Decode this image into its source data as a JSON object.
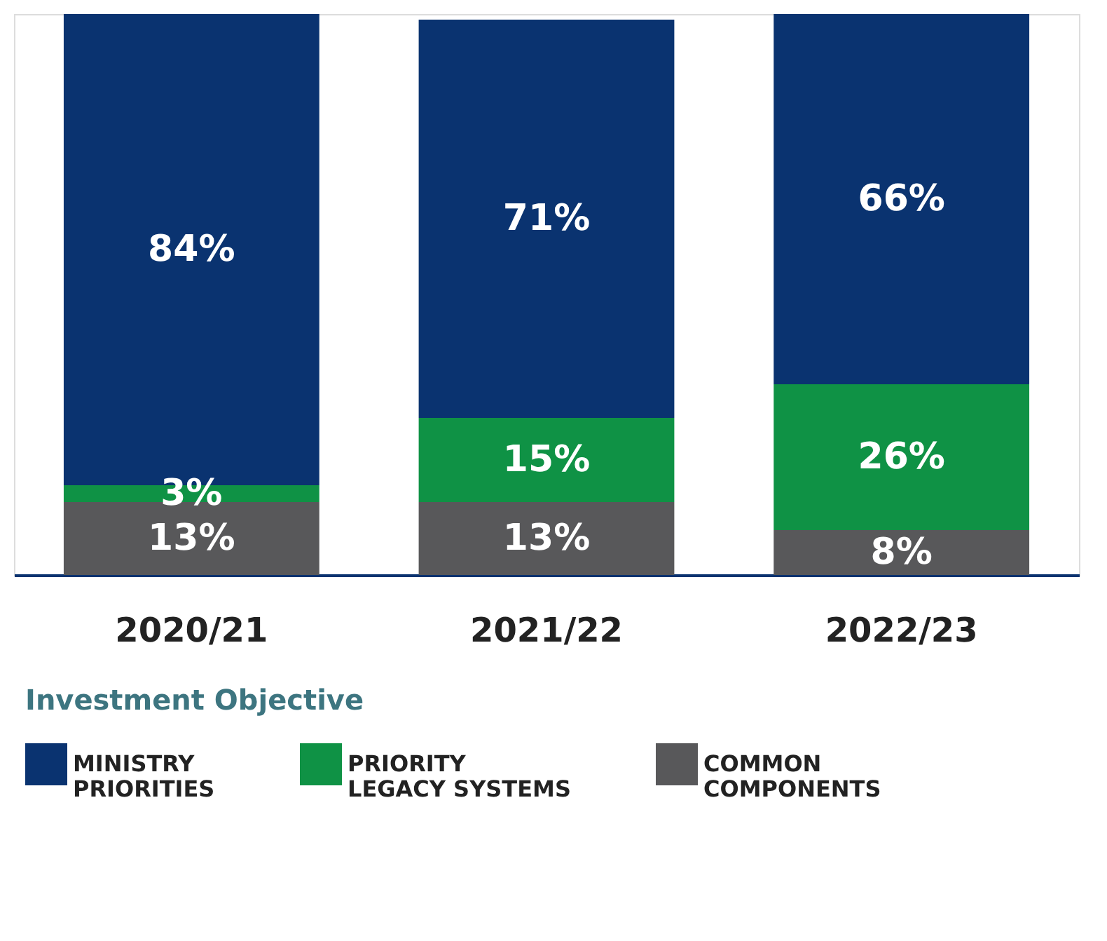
{
  "chart_data": {
    "type": "bar",
    "stacked": true,
    "categories": [
      "2020/21",
      "2021/22",
      "2022/23"
    ],
    "series": [
      {
        "name": "COMMON COMPONENTS",
        "color": "#58585a",
        "values": [
          13,
          13,
          8
        ],
        "value_labels": [
          "13%",
          "13%",
          "8%"
        ]
      },
      {
        "name": "PRIORITY LEGACY SYSTEMS",
        "color": "#0f9245",
        "values": [
          3,
          15,
          26
        ],
        "value_labels": [
          "3%",
          "15%",
          "26%"
        ]
      },
      {
        "name": "MINISTRY PRIORITIES",
        "color": "#0a3370",
        "values": [
          84,
          71,
          66
        ],
        "value_labels": [
          "84%",
          "71%",
          "66%"
        ]
      }
    ],
    "legend_title": "Investment Objective",
    "legend": "bottom",
    "tick_labels": "x"
  }
}
